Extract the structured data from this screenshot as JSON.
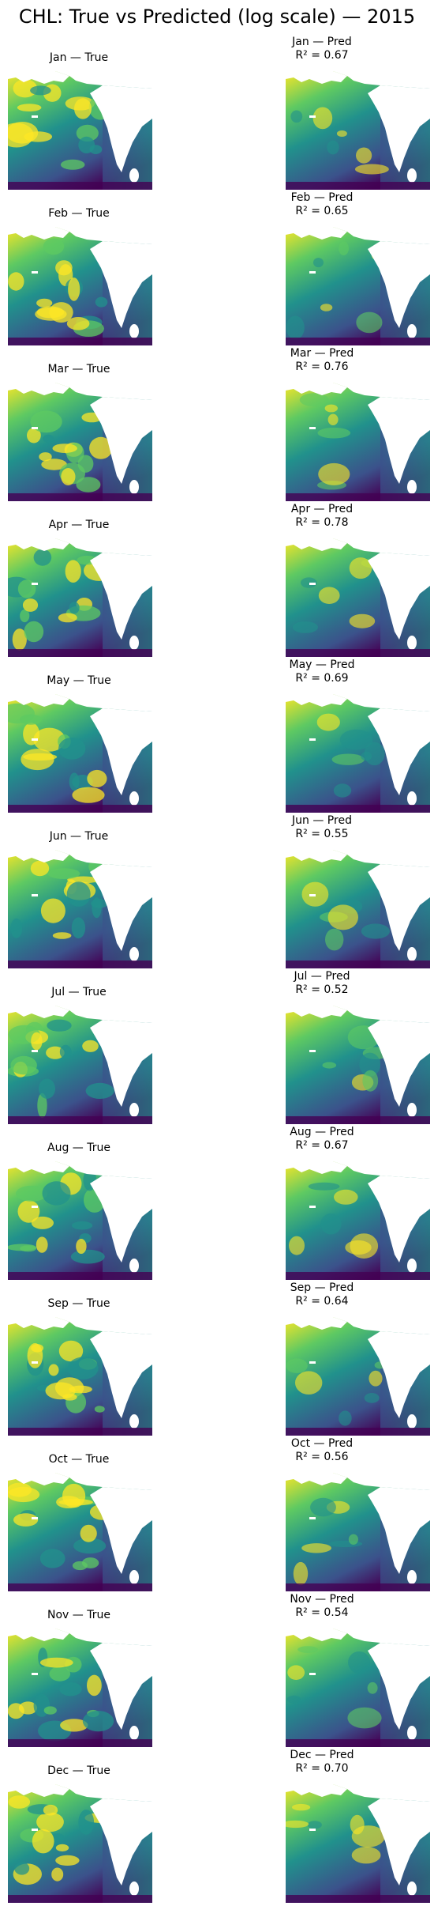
{
  "figure": {
    "title": "CHL: True vs Predicted (log scale) — 2015"
  },
  "panels": [
    {
      "true_label": "Jan — True",
      "pred_label": "Jan — Pred",
      "r2_label": "R² = 0.67",
      "r2": 0.67
    },
    {
      "true_label": "Feb — True",
      "pred_label": "Feb — Pred",
      "r2_label": "R² = 0.65",
      "r2": 0.65
    },
    {
      "true_label": "Mar — True",
      "pred_label": "Mar — Pred",
      "r2_label": "R² = 0.76",
      "r2": 0.76
    },
    {
      "true_label": "Apr — True",
      "pred_label": "Apr — Pred",
      "r2_label": "R² = 0.78",
      "r2": 0.78
    },
    {
      "true_label": "May — True",
      "pred_label": "May — Pred",
      "r2_label": "R² = 0.69",
      "r2": 0.69
    },
    {
      "true_label": "Jun — True",
      "pred_label": "Jun — Pred",
      "r2_label": "R² = 0.55",
      "r2": 0.55
    },
    {
      "true_label": "Jul — True",
      "pred_label": "Jul — Pred",
      "r2_label": "R² = 0.52",
      "r2": 0.52
    },
    {
      "true_label": "Aug — True",
      "pred_label": "Aug — Pred",
      "r2_label": "R² = 0.67",
      "r2": 0.67
    },
    {
      "true_label": "Sep — True",
      "pred_label": "Sep — Pred",
      "r2_label": "R² = 0.64",
      "r2": 0.64
    },
    {
      "true_label": "Oct — True",
      "pred_label": "Oct — Pred",
      "r2_label": "R² = 0.56",
      "r2": 0.56
    },
    {
      "true_label": "Nov — True",
      "pred_label": "Nov — Pred",
      "r2_label": "R² = 0.54",
      "r2": 0.54
    },
    {
      "true_label": "Dec — True",
      "pred_label": "Dec — Pred",
      "r2_label": "R² = 0.70",
      "r2": 0.7
    }
  ],
  "colormap": {
    "name": "viridis",
    "low": "#440154",
    "mid_low": "#3b528b",
    "mid": "#21918c",
    "mid_high": "#5ec962",
    "high": "#fde725",
    "land": "#ffffff"
  }
}
